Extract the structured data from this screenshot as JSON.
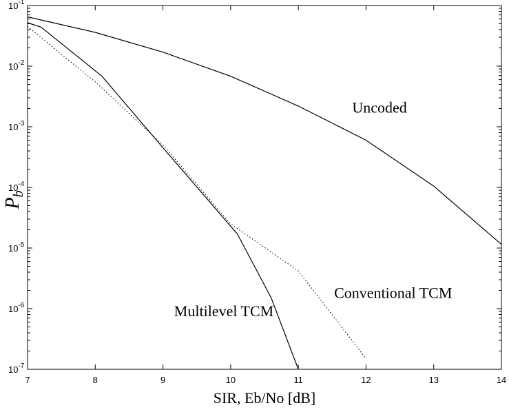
{
  "chart_data": {
    "type": "line",
    "title": "",
    "xlabel": "SIR, Eb/No [dB]",
    "ylabel": {
      "main": "P",
      "sub": "b"
    },
    "xlim": [
      7,
      14
    ],
    "ylim": [
      1e-07,
      0.1
    ],
    "yscale": "log",
    "grid": false,
    "x_ticks": [
      "7",
      "8",
      "9",
      "10",
      "11",
      "12",
      "13",
      "14"
    ],
    "y_ticks": [
      {
        "base": "10",
        "exp": "-7"
      },
      {
        "base": "10",
        "exp": "-6"
      },
      {
        "base": "10",
        "exp": "-5"
      },
      {
        "base": "10",
        "exp": "-4"
      },
      {
        "base": "10",
        "exp": "-3"
      },
      {
        "base": "10",
        "exp": "-2"
      },
      {
        "base": "10",
        "exp": "-1"
      }
    ],
    "series": [
      {
        "name": "Uncoded",
        "style": "solid",
        "color": "#000000",
        "x": [
          7,
          8,
          9,
          10,
          11,
          12,
          13,
          14
        ],
        "y": [
          0.065,
          0.036,
          0.017,
          0.0068,
          0.0022,
          0.0006,
          0.000105,
          1.15e-05
        ]
      },
      {
        "name": "Multilevel TCM",
        "style": "solid",
        "color": "#000000",
        "x": [
          7,
          7.2,
          8.1,
          9,
          10.1,
          10.6,
          11
        ],
        "y": [
          0.052,
          0.044,
          0.0068,
          0.00045,
          1.7e-05,
          1.5e-06,
          1e-07
        ]
      },
      {
        "name": "Conventional TCM",
        "style": "dotted",
        "color": "#000000",
        "x": [
          7,
          8,
          9,
          10,
          11,
          12
        ],
        "y": [
          0.045,
          0.0055,
          0.0005,
          2.5e-05,
          4.2e-06,
          1.5e-07
        ]
      }
    ],
    "annotations": [
      {
        "text": "Uncoded",
        "x": 12.2,
        "y": 0.0017
      },
      {
        "text": "Conventional TCM",
        "x": 12.4,
        "y": 1.5e-06
      },
      {
        "text": "Multilevel TCM",
        "x": 9.9,
        "y": 7.5e-07
      }
    ]
  }
}
